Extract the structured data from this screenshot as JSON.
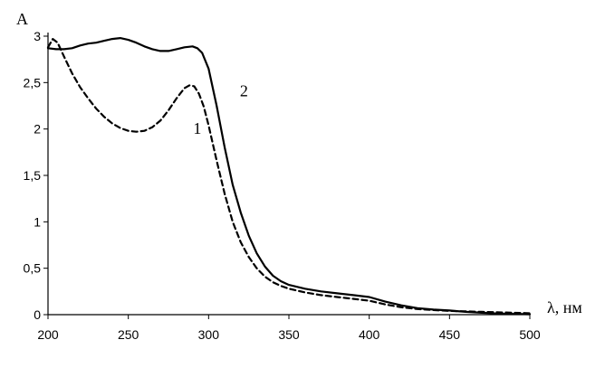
{
  "chart_data": {
    "type": "line",
    "title": "",
    "xlabel": "λ, нм",
    "ylabel": "A",
    "xlim": [
      200,
      500
    ],
    "ylim": [
      0,
      3
    ],
    "grid": false,
    "legend": "none",
    "x_ticks": [
      "200",
      "250",
      "300",
      "350",
      "400",
      "450",
      "500"
    ],
    "y_ticks": [
      "0",
      "0,5",
      "1",
      "1,5",
      "2",
      "2,5",
      "3"
    ],
    "series": [
      {
        "name": "1",
        "style": "dashed",
        "color": "#000000",
        "points": [
          [
            200,
            2.88
          ],
          [
            203,
            2.97
          ],
          [
            206,
            2.93
          ],
          [
            210,
            2.78
          ],
          [
            215,
            2.6
          ],
          [
            220,
            2.45
          ],
          [
            225,
            2.33
          ],
          [
            230,
            2.22
          ],
          [
            235,
            2.13
          ],
          [
            240,
            2.06
          ],
          [
            245,
            2.01
          ],
          [
            250,
            1.98
          ],
          [
            255,
            1.97
          ],
          [
            260,
            1.98
          ],
          [
            265,
            2.02
          ],
          [
            270,
            2.09
          ],
          [
            275,
            2.2
          ],
          [
            280,
            2.33
          ],
          [
            285,
            2.44
          ],
          [
            288,
            2.47
          ],
          [
            291,
            2.46
          ],
          [
            294,
            2.38
          ],
          [
            297,
            2.24
          ],
          [
            300,
            2.04
          ],
          [
            305,
            1.66
          ],
          [
            310,
            1.3
          ],
          [
            315,
            1.0
          ],
          [
            320,
            0.78
          ],
          [
            325,
            0.62
          ],
          [
            330,
            0.5
          ],
          [
            335,
            0.41
          ],
          [
            340,
            0.35
          ],
          [
            345,
            0.31
          ],
          [
            350,
            0.28
          ],
          [
            360,
            0.24
          ],
          [
            370,
            0.21
          ],
          [
            380,
            0.19
          ],
          [
            390,
            0.17
          ],
          [
            400,
            0.15
          ],
          [
            410,
            0.11
          ],
          [
            420,
            0.08
          ],
          [
            430,
            0.06
          ],
          [
            440,
            0.05
          ],
          [
            450,
            0.04
          ],
          [
            470,
            0.03
          ],
          [
            490,
            0.02
          ],
          [
            500,
            0.015
          ]
        ]
      },
      {
        "name": "2",
        "style": "solid",
        "color": "#000000",
        "points": [
          [
            200,
            2.87
          ],
          [
            205,
            2.86
          ],
          [
            210,
            2.86
          ],
          [
            215,
            2.87
          ],
          [
            220,
            2.9
          ],
          [
            225,
            2.92
          ],
          [
            230,
            2.93
          ],
          [
            235,
            2.95
          ],
          [
            240,
            2.97
          ],
          [
            245,
            2.98
          ],
          [
            250,
            2.96
          ],
          [
            255,
            2.93
          ],
          [
            260,
            2.89
          ],
          [
            265,
            2.86
          ],
          [
            270,
            2.84
          ],
          [
            275,
            2.84
          ],
          [
            280,
            2.86
          ],
          [
            285,
            2.88
          ],
          [
            290,
            2.89
          ],
          [
            293,
            2.87
          ],
          [
            296,
            2.82
          ],
          [
            300,
            2.65
          ],
          [
            305,
            2.25
          ],
          [
            310,
            1.8
          ],
          [
            315,
            1.4
          ],
          [
            320,
            1.1
          ],
          [
            325,
            0.85
          ],
          [
            330,
            0.66
          ],
          [
            335,
            0.52
          ],
          [
            340,
            0.42
          ],
          [
            345,
            0.36
          ],
          [
            350,
            0.32
          ],
          [
            360,
            0.28
          ],
          [
            370,
            0.25
          ],
          [
            380,
            0.23
          ],
          [
            390,
            0.21
          ],
          [
            400,
            0.19
          ],
          [
            410,
            0.14
          ],
          [
            420,
            0.1
          ],
          [
            430,
            0.07
          ],
          [
            440,
            0.055
          ],
          [
            450,
            0.045
          ],
          [
            460,
            0.03
          ],
          [
            470,
            0.02
          ],
          [
            480,
            0.012
          ],
          [
            490,
            0.008
          ],
          [
            500,
            0.005
          ]
        ]
      }
    ],
    "annotations": [
      {
        "text": "1",
        "x": 293,
        "y": 1.95
      },
      {
        "text": "2",
        "x": 322,
        "y": 2.35
      }
    ]
  }
}
